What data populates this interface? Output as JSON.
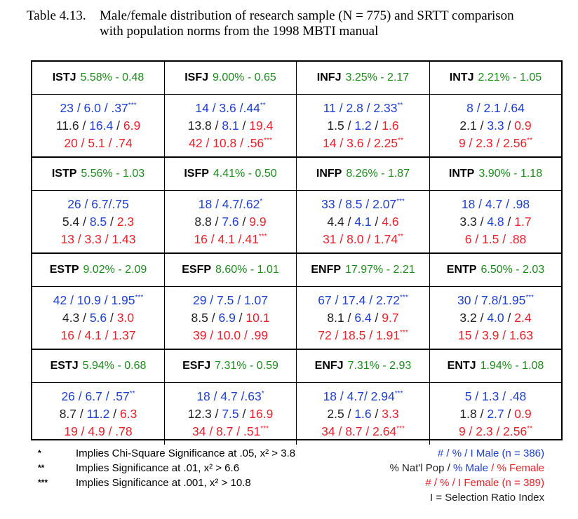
{
  "caption": {
    "number": "Table 4.13.",
    "line1": "Male/female distribution of research sample (N = 775) and SRTT comparison",
    "line2": "with population norms from the 1998 MBTI manual"
  },
  "colors": {
    "male": "#1f3fcf",
    "female": "#e8222a",
    "population": "#222222",
    "stat": "#1e8a1e"
  },
  "rows": [
    {
      "cells": [
        {
          "type": "ISTJ",
          "stat": "5.58% - 0.48",
          "male": "23 / 6.0 / .37",
          "male_sig": "***",
          "pop_a": "11.6",
          "pop_b": "16.4",
          "pop_c": "6.9",
          "female": "20 / 5.1 / .74",
          "female_sig": ""
        },
        {
          "type": "ISFJ",
          "stat": "9.00% - 0.65",
          "male": "14 / 3.6 /.44",
          "male_sig": "**",
          "pop_a": "13.8",
          "pop_b": "8.1",
          "pop_c": "19.4",
          "female": "42 / 10.8 / .56",
          "female_sig": "***"
        },
        {
          "type": "INFJ",
          "stat": "3.25% - 2.17",
          "male": "11 / 2.8 / 2.33",
          "male_sig": "**",
          "pop_a": "1.5",
          "pop_b": "1.2",
          "pop_c": "1.6",
          "female": "14 / 3.6 / 2.25",
          "female_sig": "**"
        },
        {
          "type": "INTJ",
          "stat": "2.21% - 1.05",
          "male": "8 / 2.1 /.64",
          "male_sig": "",
          "pop_a": "2.1",
          "pop_b": "3.3",
          "pop_c": "0.9",
          "female": "9 / 2.3 / 2.56",
          "female_sig": "**"
        }
      ]
    },
    {
      "cells": [
        {
          "type": "ISTP",
          "stat": "5.56% - 1.03",
          "male": "26 / 6.7/.75",
          "male_sig": "",
          "pop_a": "5.4",
          "pop_b": "8.5",
          "pop_c": "2.3",
          "female": "13 / 3.3 / 1.43",
          "female_sig": ""
        },
        {
          "type": "ISFP",
          "stat": "4.41% - 0.50",
          "male": "18 / 4.7/.62",
          "male_sig": "*",
          "pop_a": "8.8",
          "pop_b": "7.6",
          "pop_c": "9.9",
          "female": "16 / 4.1 /.41",
          "female_sig": "***"
        },
        {
          "type": "INFP",
          "stat": "8.26% - 1.87",
          "male": "33 / 8.5 / 2.07",
          "male_sig": "***",
          "pop_a": "4.4",
          "pop_b": "4.1",
          "pop_c": "4.6",
          "female": "31 / 8.0 / 1.74",
          "female_sig": "**"
        },
        {
          "type": "INTP",
          "stat": "3.90% - 1.18",
          "male": "18 / 4.7 / .98",
          "male_sig": "",
          "pop_a": "3.3",
          "pop_b": "4.8",
          "pop_c": "1.7",
          "female": "6 / 1.5 / .88",
          "female_sig": ""
        }
      ]
    },
    {
      "cells": [
        {
          "type": "ESTP",
          "stat": "9.02% - 2.09",
          "male": "42 / 10.9 / 1.95",
          "male_sig": "***",
          "pop_a": "4.3",
          "pop_b": "5.6",
          "pop_c": "3.0",
          "female": "16 / 4.1 / 1.37",
          "female_sig": ""
        },
        {
          "type": "ESFP",
          "stat": "8.60% - 1.01",
          "male": "29 / 7.5 / 1.07",
          "male_sig": "",
          "pop_a": "8.5",
          "pop_b": "6.9",
          "pop_c": "10.1",
          "female": "39 / 10.0 / .99",
          "female_sig": ""
        },
        {
          "type": "ENFP",
          "stat": "17.97% - 2.21",
          "male": "67 / 17.4 / 2.72",
          "male_sig": "***",
          "pop_a": "8.1",
          "pop_b": "6.4",
          "pop_c": "9.7",
          "female": "72 / 18.5 / 1.91",
          "female_sig": "***"
        },
        {
          "type": "ENTP",
          "stat": "6.50% - 2.03",
          "male": "30 / 7.8/1.95",
          "male_sig": "***",
          "pop_a": "3.2",
          "pop_b": "4.0",
          "pop_c": "2.4",
          "female": "15 / 3.9 / 1.63",
          "female_sig": ""
        }
      ]
    },
    {
      "cells": [
        {
          "type": "ESTJ",
          "stat": "5.94% - 0.68",
          "male": "26 / 6.7 / .57",
          "male_sig": "**",
          "pop_a": "8.7",
          "pop_b": "11.2",
          "pop_c": "6.3",
          "female": "19 / 4.9 / .78",
          "female_sig": ""
        },
        {
          "type": "ESFJ",
          "stat": "7.31% - 0.59",
          "male": "18 / 4.7 /.63",
          "male_sig": "*",
          "pop_a": "12.3",
          "pop_b": "7.5",
          "pop_c": "16.9",
          "female": "34 / 8.7 / .51",
          "female_sig": "***"
        },
        {
          "type": "ENFJ",
          "stat": "7.31% - 2.93",
          "male": "18 / 4.7/ 2.94",
          "male_sig": "***",
          "pop_a": "2.5",
          "pop_b": "1.6",
          "pop_c": "3.3",
          "female": "34 / 8.7 / 2.64",
          "female_sig": "***"
        },
        {
          "type": "ENTJ",
          "stat": "1.94% - 1.08",
          "male": "5 / 1.3 / .48",
          "male_sig": "",
          "pop_a": "1.8",
          "pop_b": "2.7",
          "pop_c": "0.9",
          "female": "9 / 2.3 / 2.56",
          "female_sig": "**"
        }
      ]
    }
  ],
  "legend": {
    "left": [
      {
        "mark": "*",
        "text": "Implies Chi-Square Significance at .05, x² > 3.8"
      },
      {
        "mark": "**",
        "text": "Implies Significance at .01, x² > 6.6"
      },
      {
        "mark": "***",
        "text": "Implies Significance at .001, x² > 10.8"
      }
    ],
    "right": {
      "male_line": "# / % / I  Male (n = 386)",
      "pop_line_a": "% Nat'l Pop / ",
      "pop_line_b": "% Male",
      "pop_line_c": " / % Female",
      "female_line": "# / % / I  Female (n = 389)",
      "index_line": "I = Selection Ratio Index"
    }
  }
}
